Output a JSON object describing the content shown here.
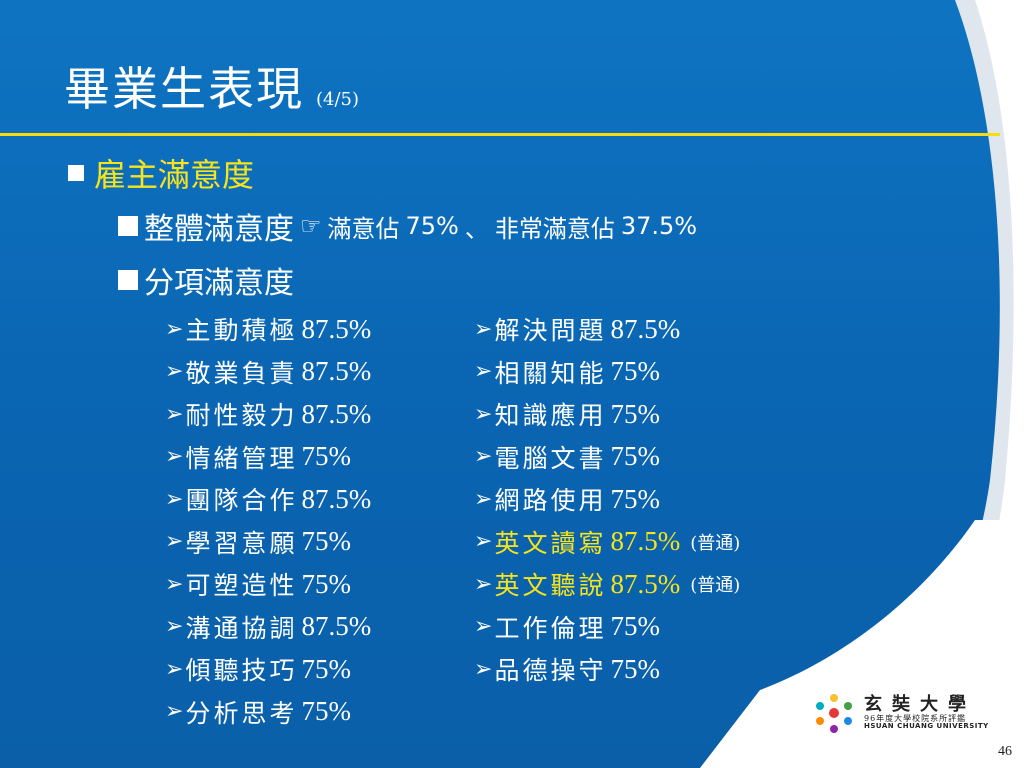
{
  "title": "畢業生表現",
  "title_sub": "(4/5)",
  "heading": "雇主滿意度",
  "overall": {
    "label": "整體滿意度",
    "icon": "pointing-hand-icon",
    "summary_a": "滿意佔",
    "value_a": "75%",
    "sep": "、",
    "summary_b": "非常滿意佔",
    "value_b": "37.5%"
  },
  "breakdown_label": "分項滿意度",
  "left_items": [
    {
      "name": "主動積極",
      "pct": "87.5%"
    },
    {
      "name": "敬業負責",
      "pct": "87.5%"
    },
    {
      "name": "耐性毅力",
      "pct": "87.5%"
    },
    {
      "name": "情緒管理",
      "pct": "75%"
    },
    {
      "name": "團隊合作",
      "pct": "87.5%"
    },
    {
      "name": "學習意願",
      "pct": "75%"
    },
    {
      "name": "可塑造性",
      "pct": "75%"
    },
    {
      "name": "溝通協調",
      "pct": "87.5%"
    },
    {
      "name": "傾聽技巧",
      "pct": "75%"
    },
    {
      "name": "分析思考",
      "pct": "75%"
    }
  ],
  "right_items": [
    {
      "name": "解決問題",
      "pct": "87.5%",
      "note": ""
    },
    {
      "name": "相關知能",
      "pct": "75%",
      "note": ""
    },
    {
      "name": "知識應用",
      "pct": "75%",
      "note": ""
    },
    {
      "name": "電腦文書",
      "pct": "75%",
      "note": ""
    },
    {
      "name": "網路使用",
      "pct": "75%",
      "note": ""
    },
    {
      "name": "英文讀寫",
      "pct": "87.5%",
      "note": "(普通)"
    },
    {
      "name": "英文聽說",
      "pct": "87.5%",
      "note": "(普通)"
    },
    {
      "name": "工作倫理",
      "pct": "75%",
      "note": ""
    },
    {
      "name": "品德操守",
      "pct": "75%",
      "note": ""
    }
  ],
  "arrow": "➢",
  "logo": {
    "name": "玄奘大學",
    "sub": "96年度大學校院系所評鑑",
    "en": "HSUAN CHUANG UNIVERSITY"
  },
  "page_number": "46",
  "colors": {
    "background": "#0a6ab8",
    "accent_yellow": "#f7e41c",
    "rule": "#f7dd10"
  }
}
